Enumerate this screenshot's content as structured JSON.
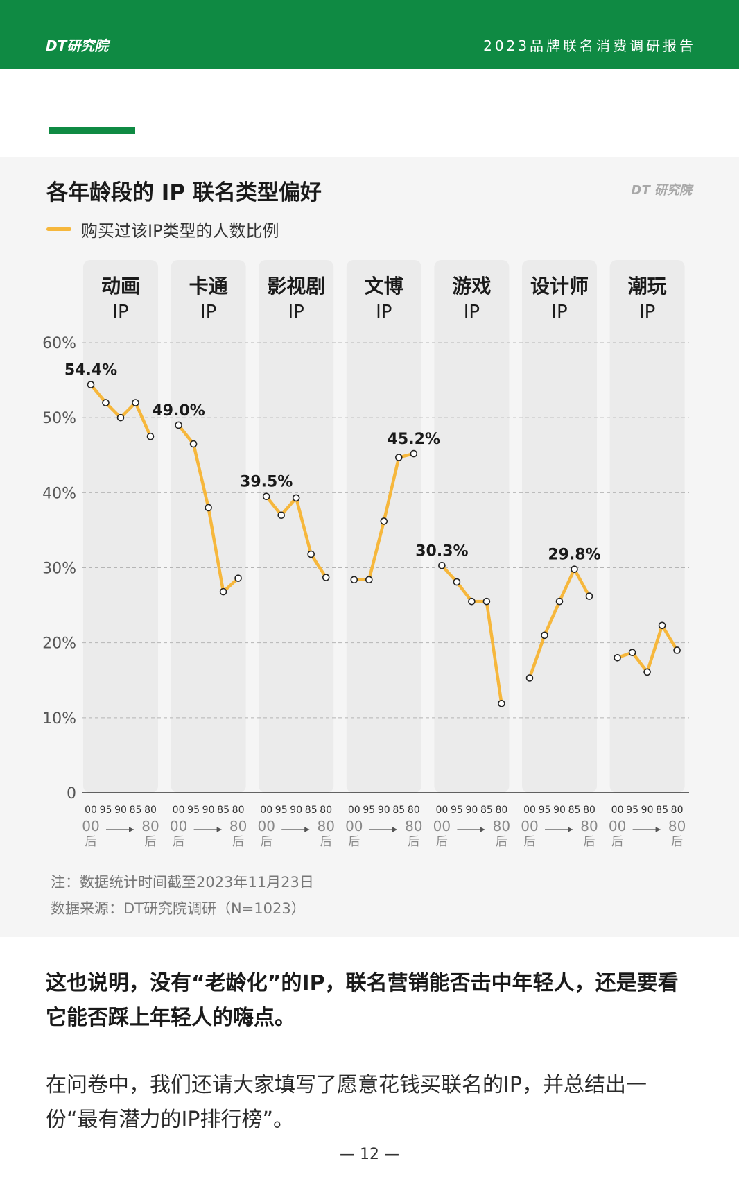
{
  "header": {
    "logo_text": "DT研究院",
    "report_title": "2023品牌联名消费调研报告",
    "color": "#0f8a43"
  },
  "chart_meta": {
    "watermark": "DT 研究院"
  },
  "notes": {
    "note": "注：数据统计时间截至2023年11月23日",
    "source": "数据来源：DT研究院调研（N=1023）"
  },
  "body": {
    "bold_paragraph": "这也说明，没有“老龄化”的IP，联名营销能否击中年轻人，还是要看它能否踩上年轻人的嗨点。",
    "paragraph": "在问卷中，我们还请大家填写了愿意花钱买联名的IP，并总结出一份“最有潜力的IP排行榜”。"
  },
  "page_number": "— 12 —",
  "chart_data": {
    "type": "line",
    "title": "各年龄段的 IP 联名类型偏好",
    "legend": [
      {
        "label": "购买过该IP类型的人数比例",
        "color": "#f6b73c"
      }
    ],
    "legend_position": "top-left",
    "ylabel": "",
    "ylim": [
      0,
      60
    ],
    "y_ticks": [
      "0",
      "10%",
      "20%",
      "30%",
      "40%",
      "50%",
      "60%"
    ],
    "y_tick_values": [
      0,
      10,
      20,
      30,
      40,
      50,
      60
    ],
    "grid": true,
    "x_ticks": [
      "00",
      "95",
      "90",
      "85",
      "80"
    ],
    "x_range_labels": {
      "start": "00",
      "start_suffix": "后",
      "end": "80",
      "end_suffix": "后"
    },
    "line_color": "#f6b73c",
    "series": [
      {
        "name": "动画",
        "name_suffix": "IP",
        "values": [
          54.4,
          52.0,
          50.0,
          52.0,
          47.5
        ],
        "label_index": 0,
        "label": "54.4%"
      },
      {
        "name": "卡通",
        "name_suffix": "IP",
        "values": [
          49.0,
          46.5,
          38.0,
          26.8,
          28.6
        ],
        "label_index": 0,
        "label": "49.0%"
      },
      {
        "name": "影视剧",
        "name_suffix": "IP",
        "values": [
          39.5,
          37.0,
          39.3,
          31.8,
          28.7
        ],
        "label_index": 0,
        "label": "39.5%"
      },
      {
        "name": "文博",
        "name_suffix": "IP",
        "values": [
          28.4,
          28.4,
          36.2,
          44.7,
          45.2
        ],
        "label_index": 4,
        "label": "45.2%"
      },
      {
        "name": "游戏",
        "name_suffix": "IP",
        "values": [
          30.3,
          28.1,
          25.5,
          25.5,
          11.9
        ],
        "label_index": 0,
        "label": "30.3%"
      },
      {
        "name": "设计师",
        "name_suffix": "IP",
        "values": [
          15.3,
          21.0,
          25.5,
          29.8,
          26.2
        ],
        "label_index": 3,
        "label": "29.8%"
      },
      {
        "name": "潮玩",
        "name_suffix": "IP",
        "values": [
          18.0,
          18.7,
          16.1,
          22.3,
          19.0
        ],
        "label_index": -1,
        "label": ""
      }
    ]
  }
}
